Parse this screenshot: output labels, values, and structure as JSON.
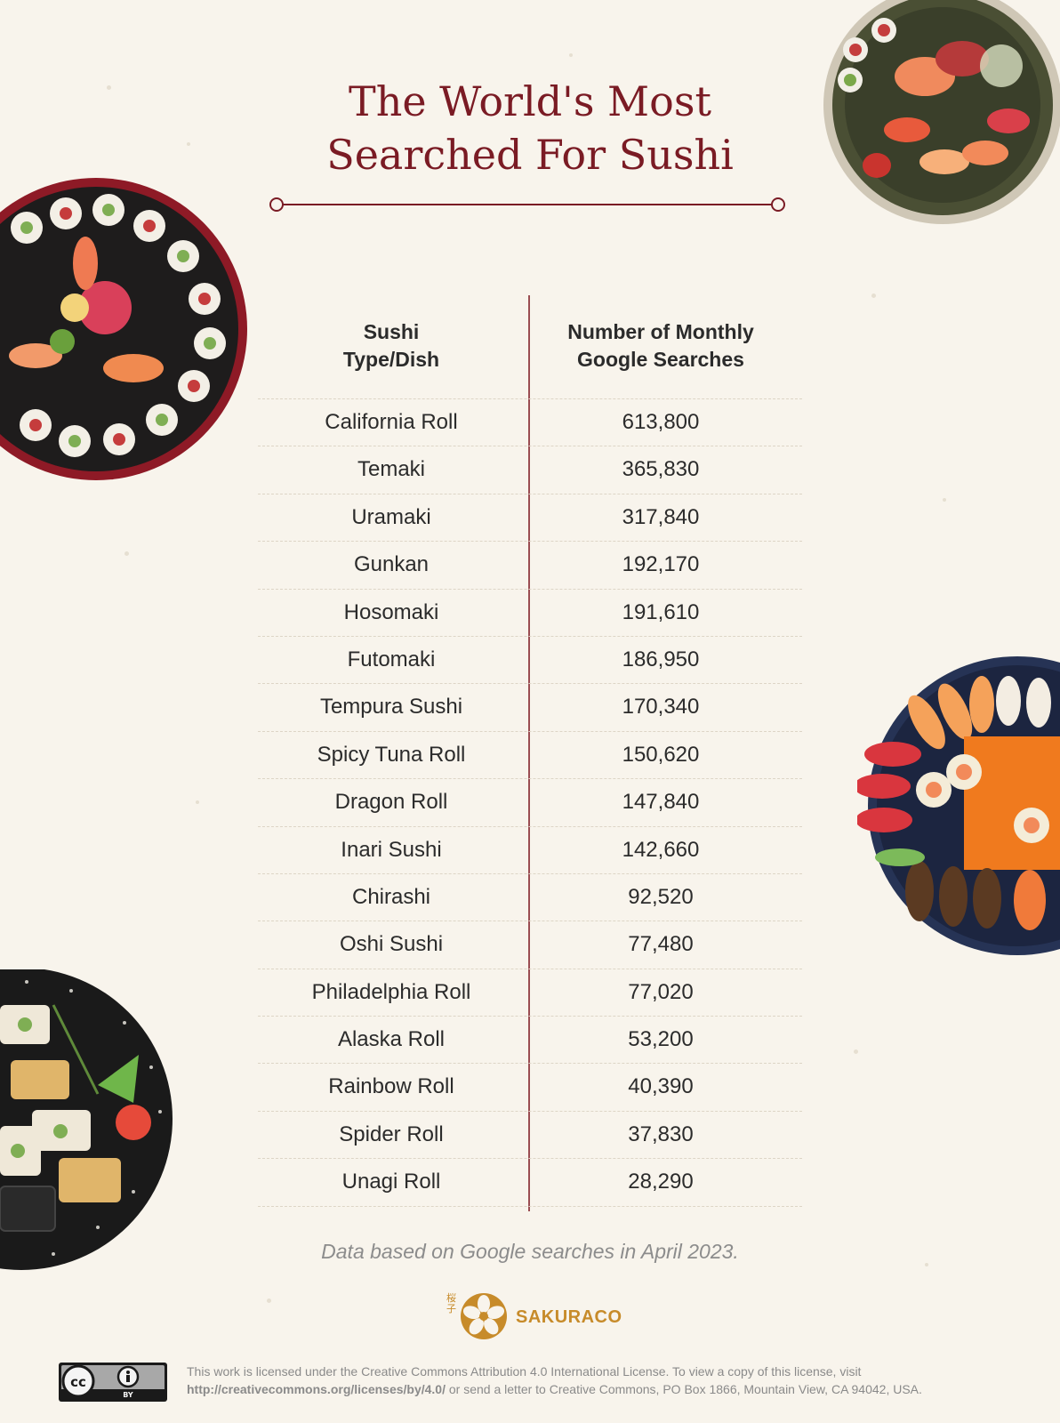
{
  "title_line1": "The World's Most",
  "title_line2": "Searched For Sushi",
  "chart_data": {
    "type": "table",
    "columns": [
      "Sushi Type/Dish",
      "Number of Monthly Google Searches"
    ],
    "column_headers": {
      "col1_line1": "Sushi",
      "col1_line2": "Type/Dish",
      "col2_line1": "Number of Monthly",
      "col2_line2": "Google Searches"
    },
    "rows": [
      {
        "dish": "California Roll",
        "searches": "613,800"
      },
      {
        "dish": "Temaki",
        "searches": "365,830"
      },
      {
        "dish": "Uramaki",
        "searches": "317,840"
      },
      {
        "dish": "Gunkan",
        "searches": "192,170"
      },
      {
        "dish": "Hosomaki",
        "searches": "191,610"
      },
      {
        "dish": "Futomaki",
        "searches": "186,950"
      },
      {
        "dish": "Tempura Sushi",
        "searches": "170,340"
      },
      {
        "dish": "Spicy Tuna Roll",
        "searches": "150,620"
      },
      {
        "dish": "Dragon Roll",
        "searches": "147,840"
      },
      {
        "dish": "Inari Sushi",
        "searches": "142,660"
      },
      {
        "dish": "Chirashi",
        "searches": "92,520"
      },
      {
        "dish": "Oshi Sushi",
        "searches": "77,480"
      },
      {
        "dish": "Philadelphia Roll",
        "searches": "77,020"
      },
      {
        "dish": "Alaska Roll",
        "searches": "53,200"
      },
      {
        "dish": "Rainbow Roll",
        "searches": "40,390"
      },
      {
        "dish": "Spider Roll",
        "searches": "37,830"
      },
      {
        "dish": "Unagi Roll",
        "searches": "28,290"
      }
    ]
  },
  "footnote": "Data based on Google searches in April 2023.",
  "brand": {
    "name": "SAKURACO",
    "kanji": "桜子",
    "color": "#c78b2a"
  },
  "license": {
    "badge_cc": "cc",
    "badge_by": "BY",
    "text_line1": "This work is licensed under the Creative Commons Attribution 4.0 International License. To view a copy of this license, visit",
    "link": "http://creativecommons.org/licenses/by/4.0/",
    "text_line2_rest": " or send a letter to Creative Commons, PO Box 1866, Mountain View, CA 94042, USA."
  },
  "colors": {
    "accent": "#7a1b24",
    "background": "#f8f4ec",
    "divider": "#9a4d52"
  },
  "decorative_images": [
    "sushi-platter-top-right",
    "sushi-platter-left-red",
    "sushi-platter-right-navy",
    "sushi-platter-bottom-left-black"
  ]
}
